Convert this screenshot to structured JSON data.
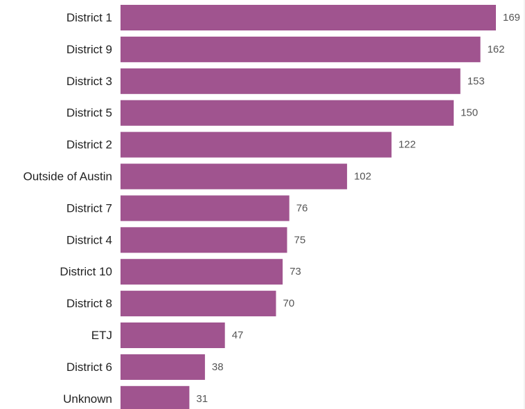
{
  "chart_data": {
    "type": "bar",
    "orientation": "horizontal",
    "categories": [
      "District 1",
      "District 9",
      "District 3",
      "District 5",
      "District 2",
      "Outside of Austin",
      "District 7",
      "District 4",
      "District 10",
      "District 8",
      "ETJ",
      "District 6",
      "Unknown"
    ],
    "values": [
      169,
      162,
      153,
      150,
      122,
      102,
      76,
      75,
      73,
      70,
      47,
      38,
      31
    ],
    "data_labels": true,
    "xlim": [
      0,
      169
    ],
    "grid": false,
    "legend": "none",
    "bar_color": "#a0548f",
    "label_color": "#222222",
    "value_label_color": "#555555"
  }
}
